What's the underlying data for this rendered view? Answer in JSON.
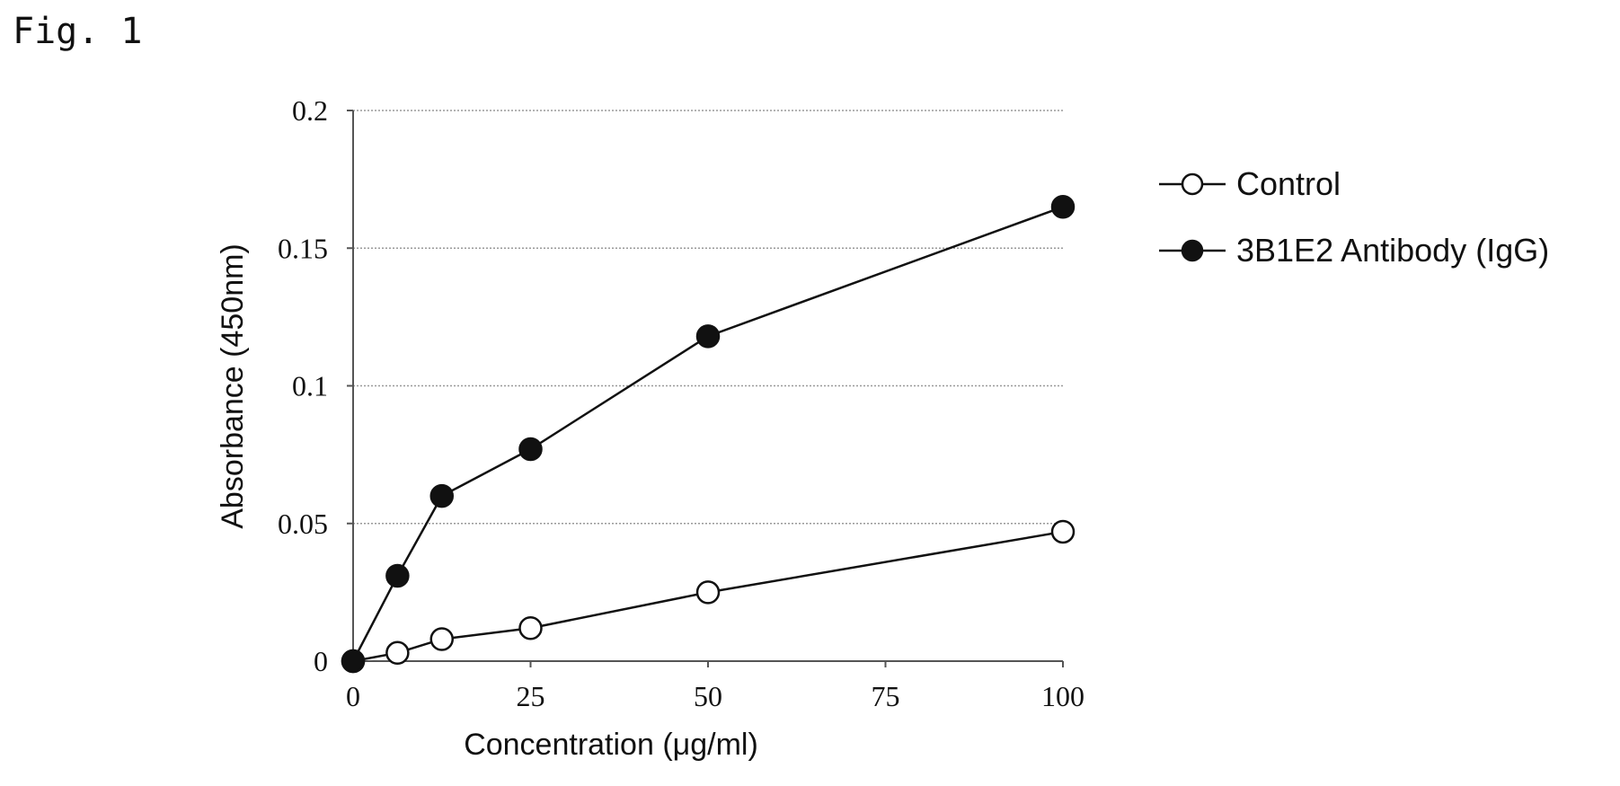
{
  "figure_label": "Fig. 1",
  "chart_data": {
    "type": "line",
    "xlabel": "Concentration (μg/ml)",
    "ylabel": "Absorbance (450nm)",
    "xlim": [
      0,
      100
    ],
    "ylim": [
      0,
      0.2
    ],
    "x_ticks": [
      0,
      25,
      50,
      75,
      100
    ],
    "y_ticks": [
      0,
      0.05,
      0.1,
      0.15,
      0.2
    ],
    "x_tick_labels": [
      "0",
      "25",
      "50",
      "75",
      "100"
    ],
    "y_tick_labels": [
      "0",
      "0.05",
      "0.1",
      "0.15",
      "0.2"
    ],
    "grid": "horizontal",
    "legend_position": "right",
    "series": [
      {
        "name": "Control",
        "marker": "open-circle",
        "x": [
          0,
          6.25,
          12.5,
          25,
          50,
          100
        ],
        "y": [
          0,
          0.003,
          0.008,
          0.012,
          0.025,
          0.047
        ]
      },
      {
        "name": "3B1E2 Antibody (IgG)",
        "marker": "filled-circle",
        "x": [
          0,
          6.25,
          12.5,
          25,
          50,
          100
        ],
        "y": [
          0,
          0.031,
          0.06,
          0.077,
          0.118,
          0.165
        ]
      }
    ]
  }
}
